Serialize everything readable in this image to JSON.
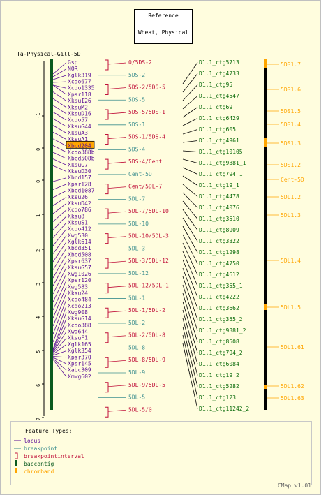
{
  "reference_box": {
    "line1": "Reference",
    "line2": "Wheat, Physical"
  },
  "map_title": "Ta-Physical-Gill-5D",
  "colors": {
    "background": "#fffdde",
    "locus": "#5b0e97",
    "breakpoint": "#3e8f8f",
    "interval": "#c0103a",
    "baccontig": "#0a5a1f",
    "chromband": "#ffa500",
    "ctg": "#0a6b0a",
    "frame": "#c0c0c0"
  },
  "scale_ticks": [
    "-1",
    "0",
    "0",
    "1",
    "2",
    "3",
    "4",
    "5",
    "6",
    "7"
  ],
  "loci": [
    "Gsp",
    "NOR",
    "Xglk319",
    "Xcdo677",
    "Xcdo1335",
    "Xpsr118",
    "XksuI26",
    "XksuM2",
    "XksuD16",
    "Xcdo57",
    "XksuG44",
    "XksuA3",
    "XksuA1",
    "Xbcd204",
    "Xcdo388b",
    "Xbcd508b",
    "XksuG7",
    "XksuD30",
    "Xbcd157",
    "Xpsr128",
    "Xbcd1087",
    "Xksu26",
    "XksuD42",
    "Xcdo786",
    "Xksu8",
    "XksuS1",
    "Xcdo412",
    "Xwg530",
    "Xglk614",
    "Xbcd351",
    "Xbcd508",
    "Xpsr637",
    "XksuG57",
    "Xwg1026",
    "Xpsr120",
    "Xwg583",
    "Xksu24",
    "Xcdo484",
    "Xcdo213",
    "Xwg908",
    "XksuG14",
    "Xcdo388",
    "Xwg644",
    "XksuF1",
    "Xglk165",
    "Xglk354",
    "Xpsr370",
    "Xpsr145",
    "Xabc309",
    "Xmwg602"
  ],
  "highlighted_locus": "Xbcd204",
  "intervals": [
    {
      "label": "0/5DS-2",
      "kind": "interval"
    },
    {
      "label": "5DS-2",
      "kind": "breakpoint"
    },
    {
      "label": "5DS-2/5DS-5",
      "kind": "interval"
    },
    {
      "label": "5DS-5",
      "kind": "breakpoint"
    },
    {
      "label": "5DS-5/5DS-1",
      "kind": "interval"
    },
    {
      "label": "5DS-1",
      "kind": "breakpoint"
    },
    {
      "label": "5DS-1/5DS-4",
      "kind": "interval"
    },
    {
      "label": "5DS-4",
      "kind": "breakpoint"
    },
    {
      "label": "5DS-4/Cent",
      "kind": "interval"
    },
    {
      "label": "Cent-5D",
      "kind": "breakpoint"
    },
    {
      "label": "Cent/5DL-7",
      "kind": "interval"
    },
    {
      "label": "5DL-7",
      "kind": "breakpoint"
    },
    {
      "label": "5DL-7/5DL-10",
      "kind": "interval"
    },
    {
      "label": "5DL-10",
      "kind": "breakpoint"
    },
    {
      "label": "5DL-10/5DL-3",
      "kind": "interval"
    },
    {
      "label": "5DL-3",
      "kind": "breakpoint"
    },
    {
      "label": "5DL-3/5DL-12",
      "kind": "interval"
    },
    {
      "label": "5DL-12",
      "kind": "breakpoint"
    },
    {
      "label": "5DL-12/5DL-1",
      "kind": "interval"
    },
    {
      "label": "5DL-1",
      "kind": "breakpoint"
    },
    {
      "label": "5DL-1/5DL-2",
      "kind": "interval"
    },
    {
      "label": "5DL-2",
      "kind": "breakpoint"
    },
    {
      "label": "5DL-2/5DL-8",
      "kind": "interval"
    },
    {
      "label": "5DL-8",
      "kind": "breakpoint"
    },
    {
      "label": "5DL-8/5DL-9",
      "kind": "interval"
    },
    {
      "label": "5DL-9",
      "kind": "breakpoint"
    },
    {
      "label": "5DL-9/5DL-5",
      "kind": "interval"
    },
    {
      "label": "5DL-5",
      "kind": "breakpoint"
    },
    {
      "label": "5DL-5/0",
      "kind": "interval"
    }
  ],
  "contigs": [
    "D1.1_ctg5713",
    "D1.1_ctg4733",
    "D1.1_ctg95",
    "D1.1_ctg4547",
    "D1.1_ctg69",
    "D1.1_ctg6429",
    "D1.1_ctg605",
    "D1.1_ctg4961",
    "D1.1_ctg10105",
    "D1.1_ctg9381_1",
    "D1.1_ctg794_1",
    "D1.1_ctg19_1",
    "D1.1_ctg4478",
    "D1.1_ctg4076",
    "D1.1_ctg3510",
    "D1.1_ctg8909",
    "D1.1_ctg3322",
    "D1.1_ctg1298",
    "D1.1_ctg4750",
    "D1.1_ctg4612",
    "D1.1_ctg355_1",
    "D1.1_ctg4222",
    "D1.1_ctg3662",
    "D1.1_ctg355_2",
    "D1.1_ctg9381_2",
    "D1.1_ctg8508",
    "D1.1_ctg794_2",
    "D1.1_ctg6084",
    "D1.1_ctg19_2",
    "D1.1_ctg5282",
    "D1.1_ctg123",
    "D1.1_ctg11242_2"
  ],
  "chromband_labels": [
    "5DS1.7",
    "5DS1.6",
    "5DS1.5",
    "5DS1.4",
    "5DS1.3",
    "5DS1.2",
    "Cent-5D",
    "5DL1.2",
    "5DL1.3",
    "5DL1.4",
    "5DL1.5",
    "5DL1.61",
    "5DL1.62",
    "5DL1.63"
  ],
  "legend": {
    "title": "Feature Types:",
    "items": [
      {
        "label": "locus",
        "color": "#5b0e97",
        "swatch": "line"
      },
      {
        "label": "breakpoint",
        "color": "#3e8f8f",
        "swatch": "line"
      },
      {
        "label": "breakpointinterval",
        "color": "#c0103a",
        "swatch": "bracket"
      },
      {
        "label": "baccontig",
        "color": "#0a5a1f",
        "swatch": "box"
      },
      {
        "label": "chromband",
        "color": "#ffa500",
        "swatch": "box"
      }
    ]
  },
  "footer": "CMap v1.01"
}
